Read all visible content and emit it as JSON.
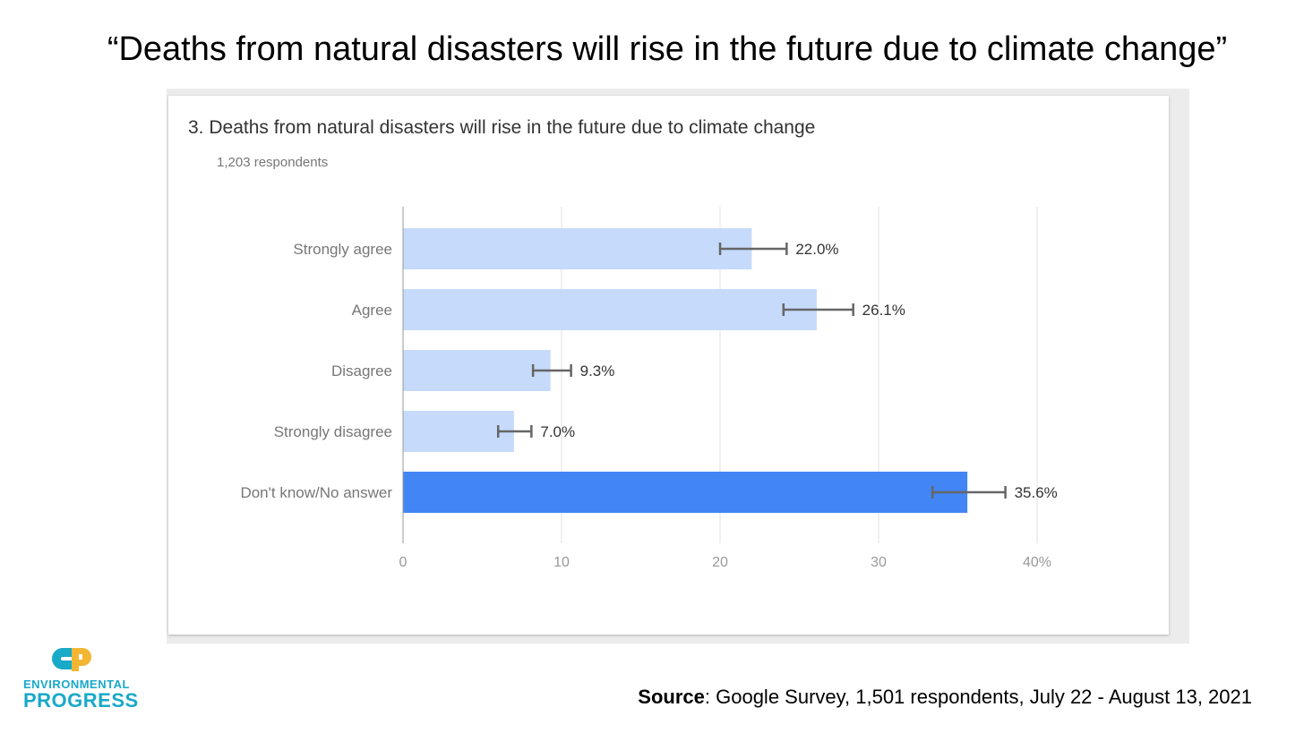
{
  "slide": {
    "title": "“Deaths from natural disasters will rise in the future due to climate change”"
  },
  "card": {
    "question": "3.  Deaths from natural disasters will rise in the future due to climate change",
    "respondents": "1,203 respondents"
  },
  "logo": {
    "line1": "ENVIRONMENTAL",
    "line2": "PROGRESS",
    "colors": {
      "cyan": "#19a9c9",
      "yellow": "#f2b632"
    }
  },
  "source": {
    "label": "Source",
    "text": ": Google Survey, 1,501 respondents, July 22 - August 13, 2021"
  },
  "chart_data": {
    "type": "bar",
    "orientation": "horizontal",
    "categories": [
      "Strongly agree",
      "Agree",
      "Disagree",
      "Strongly disagree",
      "Don't know/No answer"
    ],
    "values": [
      22.0,
      26.1,
      9.3,
      7.0,
      35.6
    ],
    "value_labels": [
      "22.0%",
      "26.1%",
      "9.3%",
      "7.0%",
      "35.6%"
    ],
    "error_low": [
      20.0,
      24.0,
      8.2,
      6.0,
      33.4
    ],
    "error_high": [
      24.2,
      28.4,
      10.6,
      8.1,
      38.0
    ],
    "highlight_index": 4,
    "xlim": [
      0,
      40
    ],
    "x_ticks": [
      0,
      10,
      20,
      30,
      40
    ],
    "x_tick_labels": [
      "0",
      "10",
      "20",
      "30",
      "40%"
    ],
    "grid": true,
    "colors": {
      "bar": "#c6dafb",
      "highlight": "#4285f4",
      "error_bar": "#666666",
      "grid": "#e0e0e0",
      "axis": "#999999"
    }
  }
}
